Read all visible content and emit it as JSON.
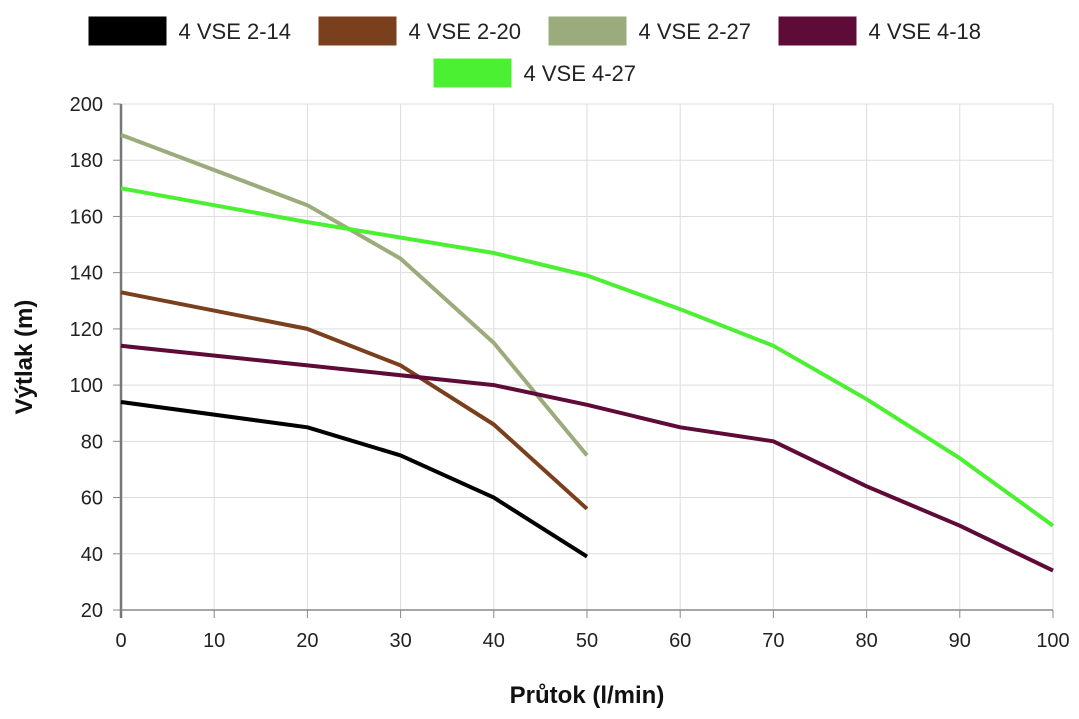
{
  "chart_data": {
    "type": "line",
    "title": "",
    "xlabel": "Průtok (l/min)",
    "ylabel": "Výtlak (m)",
    "xlim": [
      0,
      100
    ],
    "ylim": [
      20,
      200
    ],
    "xticks": [
      0,
      10,
      20,
      30,
      40,
      50,
      60,
      70,
      80,
      90,
      100
    ],
    "yticks": [
      20,
      40,
      60,
      80,
      100,
      120,
      140,
      160,
      180,
      200
    ],
    "grid": true,
    "legend_position": "top",
    "series": [
      {
        "name": "4 VSE 2-14",
        "color": "#000000",
        "x": [
          0,
          20,
          30,
          40,
          50
        ],
        "y": [
          94,
          85,
          75,
          60,
          39
        ]
      },
      {
        "name": "4 VSE 2-20",
        "color": "#7a3f1d",
        "x": [
          0,
          20,
          30,
          40,
          50
        ],
        "y": [
          133,
          120,
          107,
          86,
          56
        ]
      },
      {
        "name": "4 VSE 2-27",
        "color": "#9bab7c",
        "x": [
          0,
          20,
          30,
          40,
          50
        ],
        "y": [
          189,
          164,
          145,
          115,
          75
        ]
      },
      {
        "name": "4 VSE 4-18",
        "color": "#5e0b37",
        "x": [
          0,
          20,
          40,
          50,
          60,
          70,
          80,
          90,
          100
        ],
        "y": [
          114,
          107,
          100,
          93,
          85,
          80,
          64,
          50,
          34
        ]
      },
      {
        "name": "4 VSE 4-27",
        "color": "#4cf032",
        "x": [
          0,
          20,
          40,
          50,
          60,
          70,
          80,
          90,
          100
        ],
        "y": [
          170,
          158,
          147,
          139,
          127,
          114,
          95,
          74,
          50
        ]
      }
    ]
  }
}
